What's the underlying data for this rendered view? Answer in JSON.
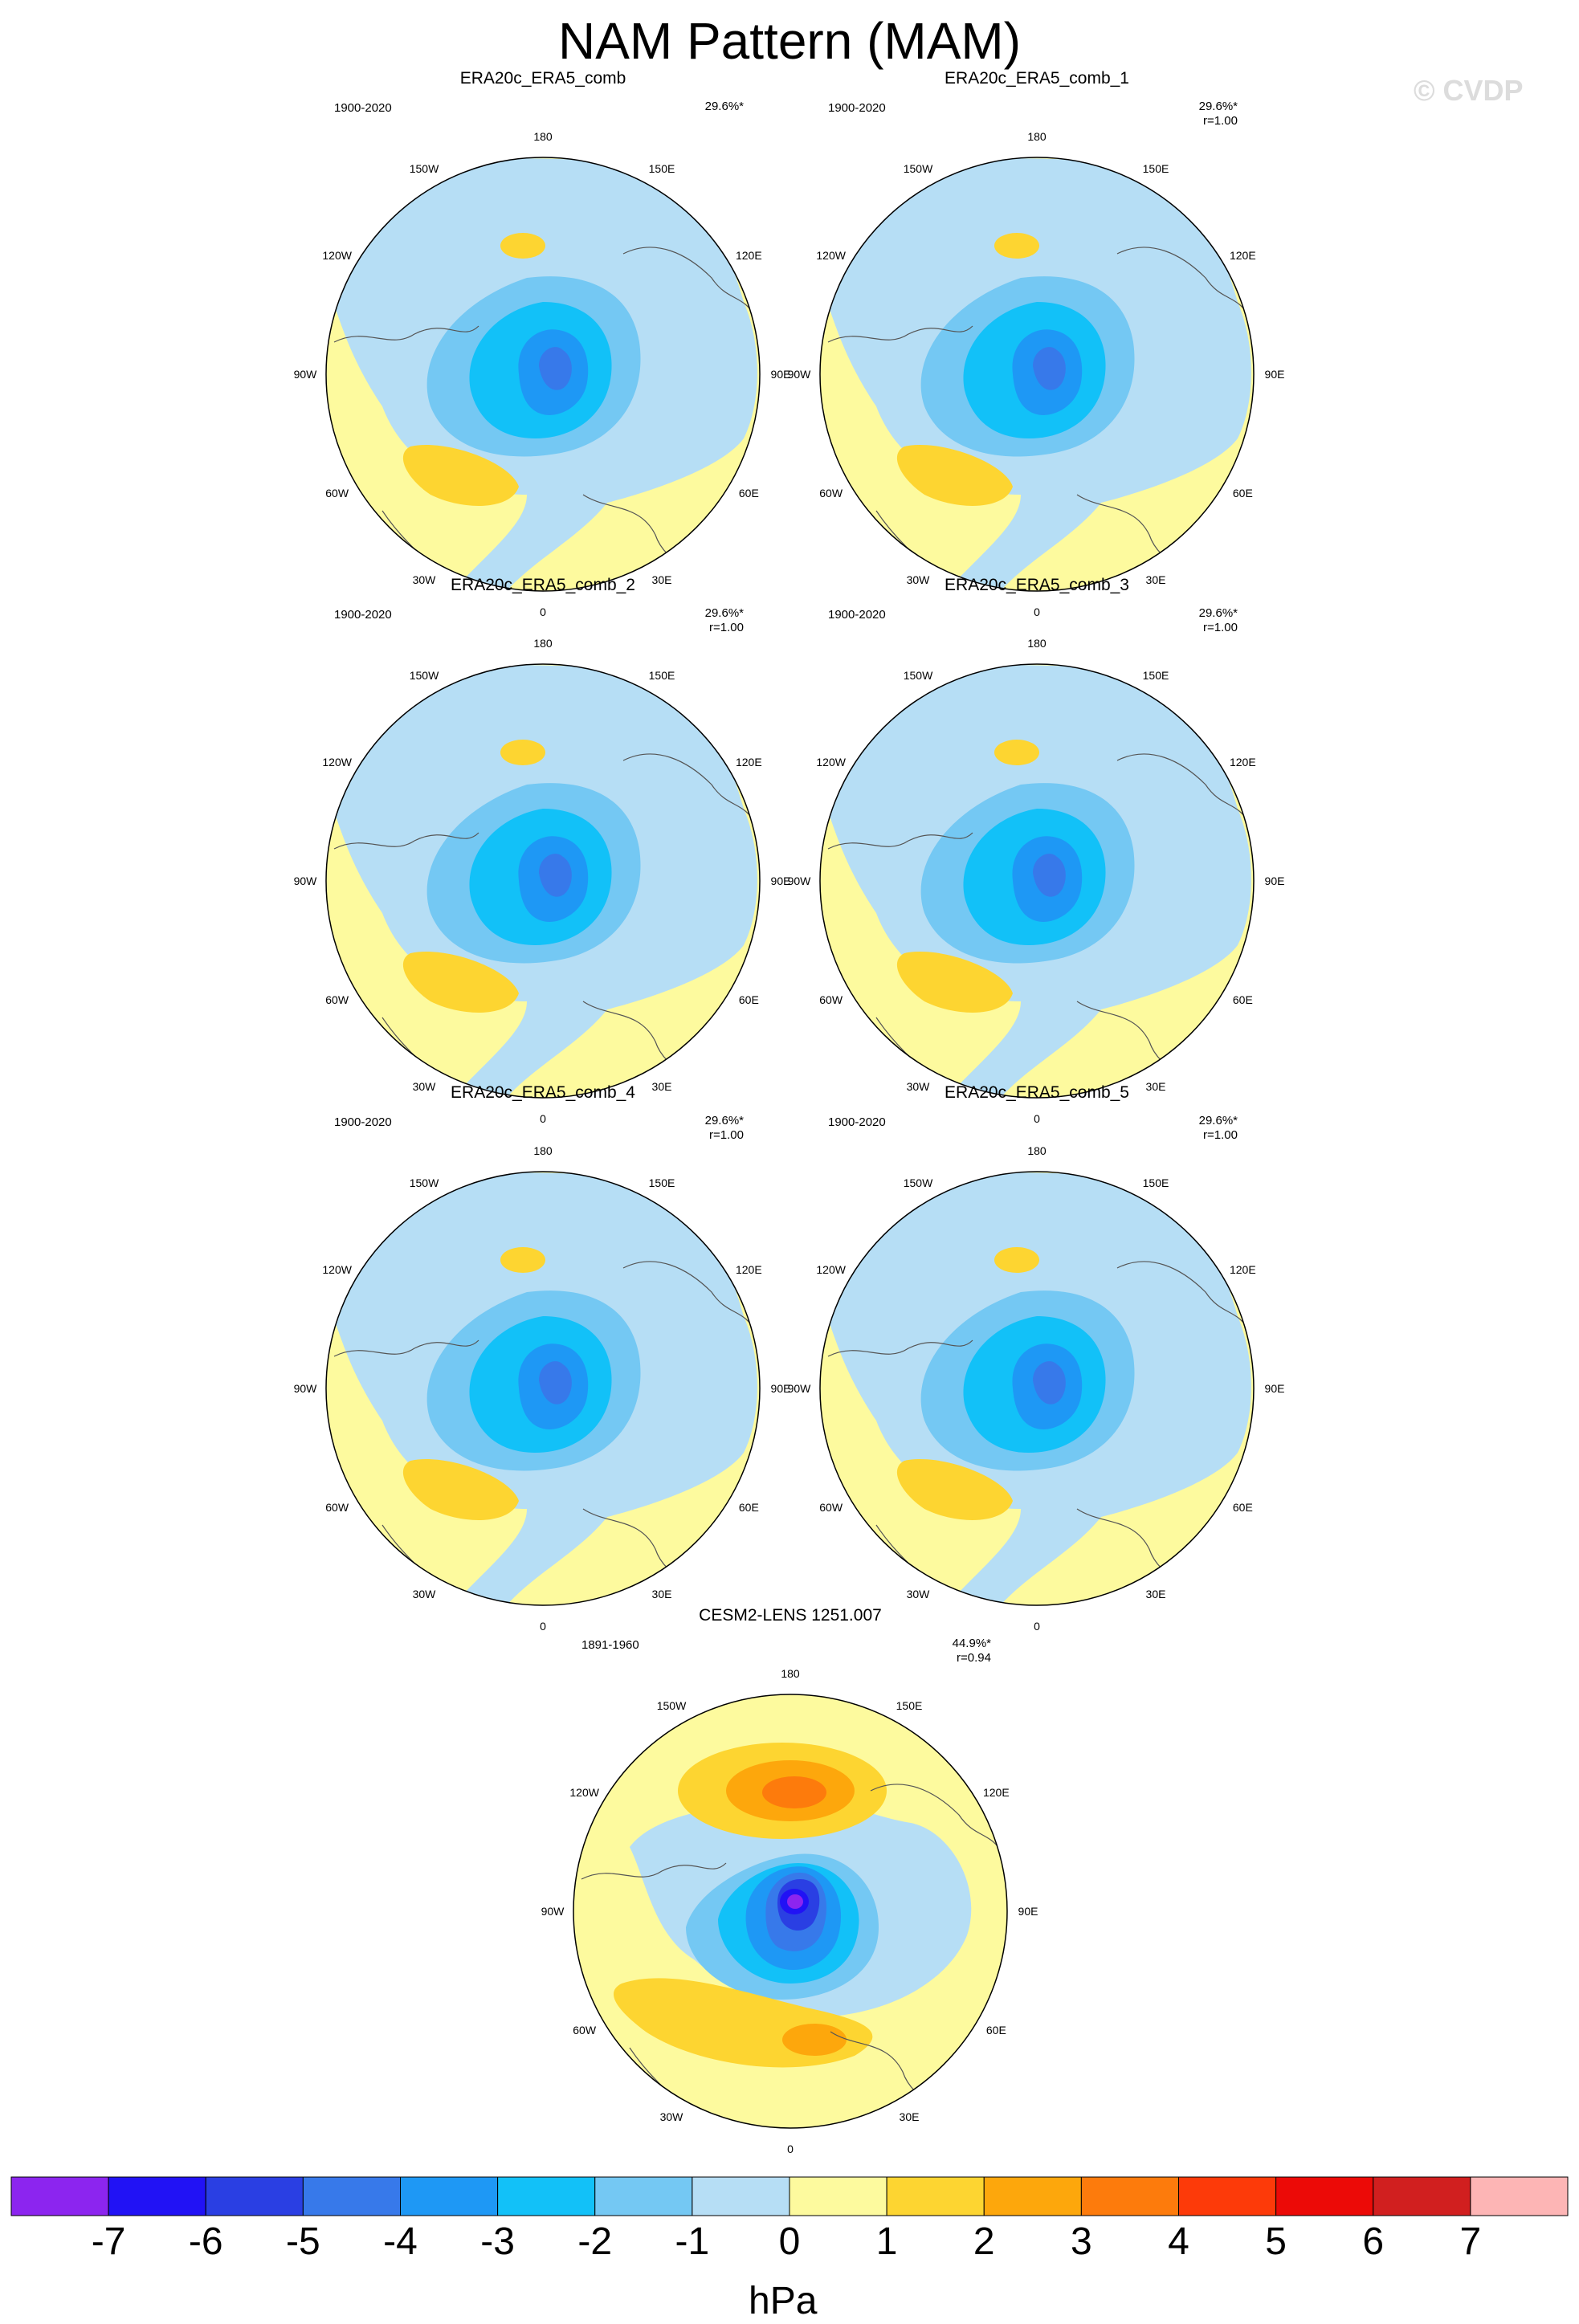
{
  "figure": {
    "title": "NAM Pattern (MAM)",
    "watermark": "© CVDP"
  },
  "panels": [
    {
      "title": "ERA20c_ERA5_comb",
      "period": "1900-2020",
      "variance": "29.6%*",
      "corr": "",
      "variant": "obs"
    },
    {
      "title": "ERA20c_ERA5_comb_1",
      "period": "1900-2020",
      "variance": "29.6%*",
      "corr": "r=1.00",
      "variant": "obs"
    },
    {
      "title": "ERA20c_ERA5_comb_2",
      "period": "1900-2020",
      "variance": "29.6%*",
      "corr": "r=1.00",
      "variant": "obs"
    },
    {
      "title": "ERA20c_ERA5_comb_3",
      "period": "1900-2020",
      "variance": "29.6%*",
      "corr": "r=1.00",
      "variant": "obs"
    },
    {
      "title": "ERA20c_ERA5_comb_4",
      "period": "1900-2020",
      "variance": "29.6%*",
      "corr": "r=1.00",
      "variant": "obs"
    },
    {
      "title": "ERA20c_ERA5_comb_5",
      "period": "1900-2020",
      "variance": "29.6%*",
      "corr": "r=1.00",
      "variant": "obs"
    },
    {
      "title": "CESM2-LENS 1251.007",
      "period": "1891-1960",
      "variance": "44.9%*",
      "corr": "r=0.94",
      "variant": "model"
    }
  ],
  "longitude_labels": [
    "180",
    "150E",
    "120E",
    "90E",
    "60E",
    "30E",
    "0",
    "30W",
    "60W",
    "90W",
    "120W",
    "150W"
  ],
  "colorbar": {
    "unit": "hPa",
    "labels": [
      "-7",
      "-6",
      "-5",
      "-4",
      "-3",
      "-2",
      "-1",
      "0",
      "1",
      "2",
      "3",
      "4",
      "5",
      "6",
      "7"
    ],
    "colors": [
      "#8c25ef",
      "#2112f5",
      "#2a3fe3",
      "#3779ea",
      "#1e98f5",
      "#12c1f8",
      "#74c8f3",
      "#b6def5",
      "#fdfa9e",
      "#fdd531",
      "#fda70c",
      "#fd7b0c",
      "#fd3a09",
      "#ec0a07",
      "#d11f1f",
      "#fdb5b5"
    ]
  }
}
